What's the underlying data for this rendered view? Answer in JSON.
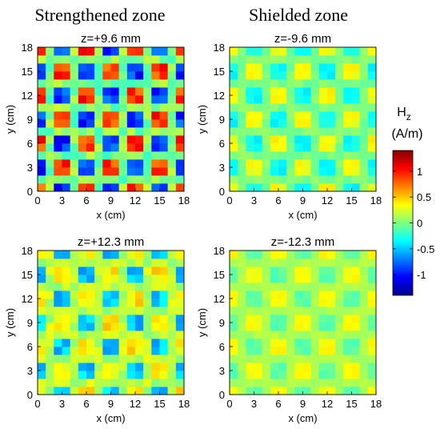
{
  "figure": {
    "col_titles": [
      "Strengthened zone",
      "Shielded zone"
    ]
  },
  "chart_data": [
    {
      "type": "heatmap",
      "title": "z=+9.6 mm",
      "xlabel": "x (cm)",
      "ylabel": "y (cm)",
      "xlim": [
        0,
        18
      ],
      "ylim": [
        0,
        18
      ],
      "x_ticks": [
        0,
        3,
        6,
        9,
        12,
        15,
        18
      ],
      "y_ticks": [
        0,
        3,
        6,
        9,
        12,
        15,
        18
      ],
      "x_tick_labels": [
        "0",
        "3",
        "6",
        "9",
        "12",
        "15",
        "18"
      ],
      "y_tick_labels": [
        "0",
        "3",
        "6",
        "9",
        "12",
        "15",
        "18"
      ],
      "grid_size": 18,
      "amplitude": 1.2,
      "pattern": "checkerboard, period 6 cm, peaks of both signs"
    },
    {
      "type": "heatmap",
      "title": "z=-9.6 mm",
      "xlabel": "x (cm)",
      "ylabel": "y (cm)",
      "xlim": [
        0,
        18
      ],
      "ylim": [
        0,
        18
      ],
      "x_ticks": [
        0,
        3,
        6,
        9,
        12,
        15,
        18
      ],
      "y_ticks": [
        0,
        3,
        6,
        9,
        12,
        15,
        18
      ],
      "x_tick_labels": [
        "0",
        "3",
        "6",
        "9",
        "12",
        "15",
        "18"
      ],
      "y_tick_labels": [
        "0",
        "3",
        "6",
        "9",
        "12",
        "15",
        "18"
      ],
      "grid_size": 18,
      "amplitude": 0.45,
      "pattern": "checkerboard, period 6 cm, weak positive/negative"
    },
    {
      "type": "heatmap",
      "title": "z=+12.3 mm",
      "xlabel": "x (cm)",
      "ylabel": "y (cm)",
      "xlim": [
        0,
        18
      ],
      "ylim": [
        0,
        18
      ],
      "x_ticks": [
        0,
        3,
        6,
        9,
        12,
        15,
        18
      ],
      "y_ticks": [
        0,
        3,
        6,
        9,
        12,
        15,
        18
      ],
      "x_tick_labels": [
        "0",
        "3",
        "6",
        "9",
        "12",
        "15",
        "18"
      ],
      "y_tick_labels": [
        "0",
        "3",
        "6",
        "9",
        "12",
        "15",
        "18"
      ],
      "grid_size": 18,
      "amplitude": 0.9,
      "pattern": "checkerboard, period 6 cm, mostly negative spots"
    },
    {
      "type": "heatmap",
      "title": "z=-12.3 mm",
      "xlabel": "x (cm)",
      "ylabel": "y (cm)",
      "xlim": [
        0,
        18
      ],
      "ylim": [
        0,
        18
      ],
      "x_ticks": [
        0,
        3,
        6,
        9,
        12,
        15,
        18
      ],
      "y_ticks": [
        0,
        3,
        6,
        9,
        12,
        15,
        18
      ],
      "x_tick_labels": [
        "0",
        "3",
        "6",
        "9",
        "12",
        "15",
        "18"
      ],
      "y_tick_labels": [
        "0",
        "3",
        "6",
        "9",
        "12",
        "15",
        "18"
      ],
      "grid_size": 18,
      "amplitude": 0.3,
      "pattern": "checkerboard, period 6 cm, near zero"
    }
  ],
  "colorbar": {
    "label": "H",
    "label_subscript": "z",
    "unit": "(A/m)",
    "range": [
      -1.4,
      1.4
    ],
    "ticks": [
      1,
      0.5,
      0,
      -0.5,
      -1
    ],
    "tick_labels": [
      "1",
      "0.5",
      "0",
      "-0.5",
      "-1"
    ],
    "colormap": "jet"
  }
}
